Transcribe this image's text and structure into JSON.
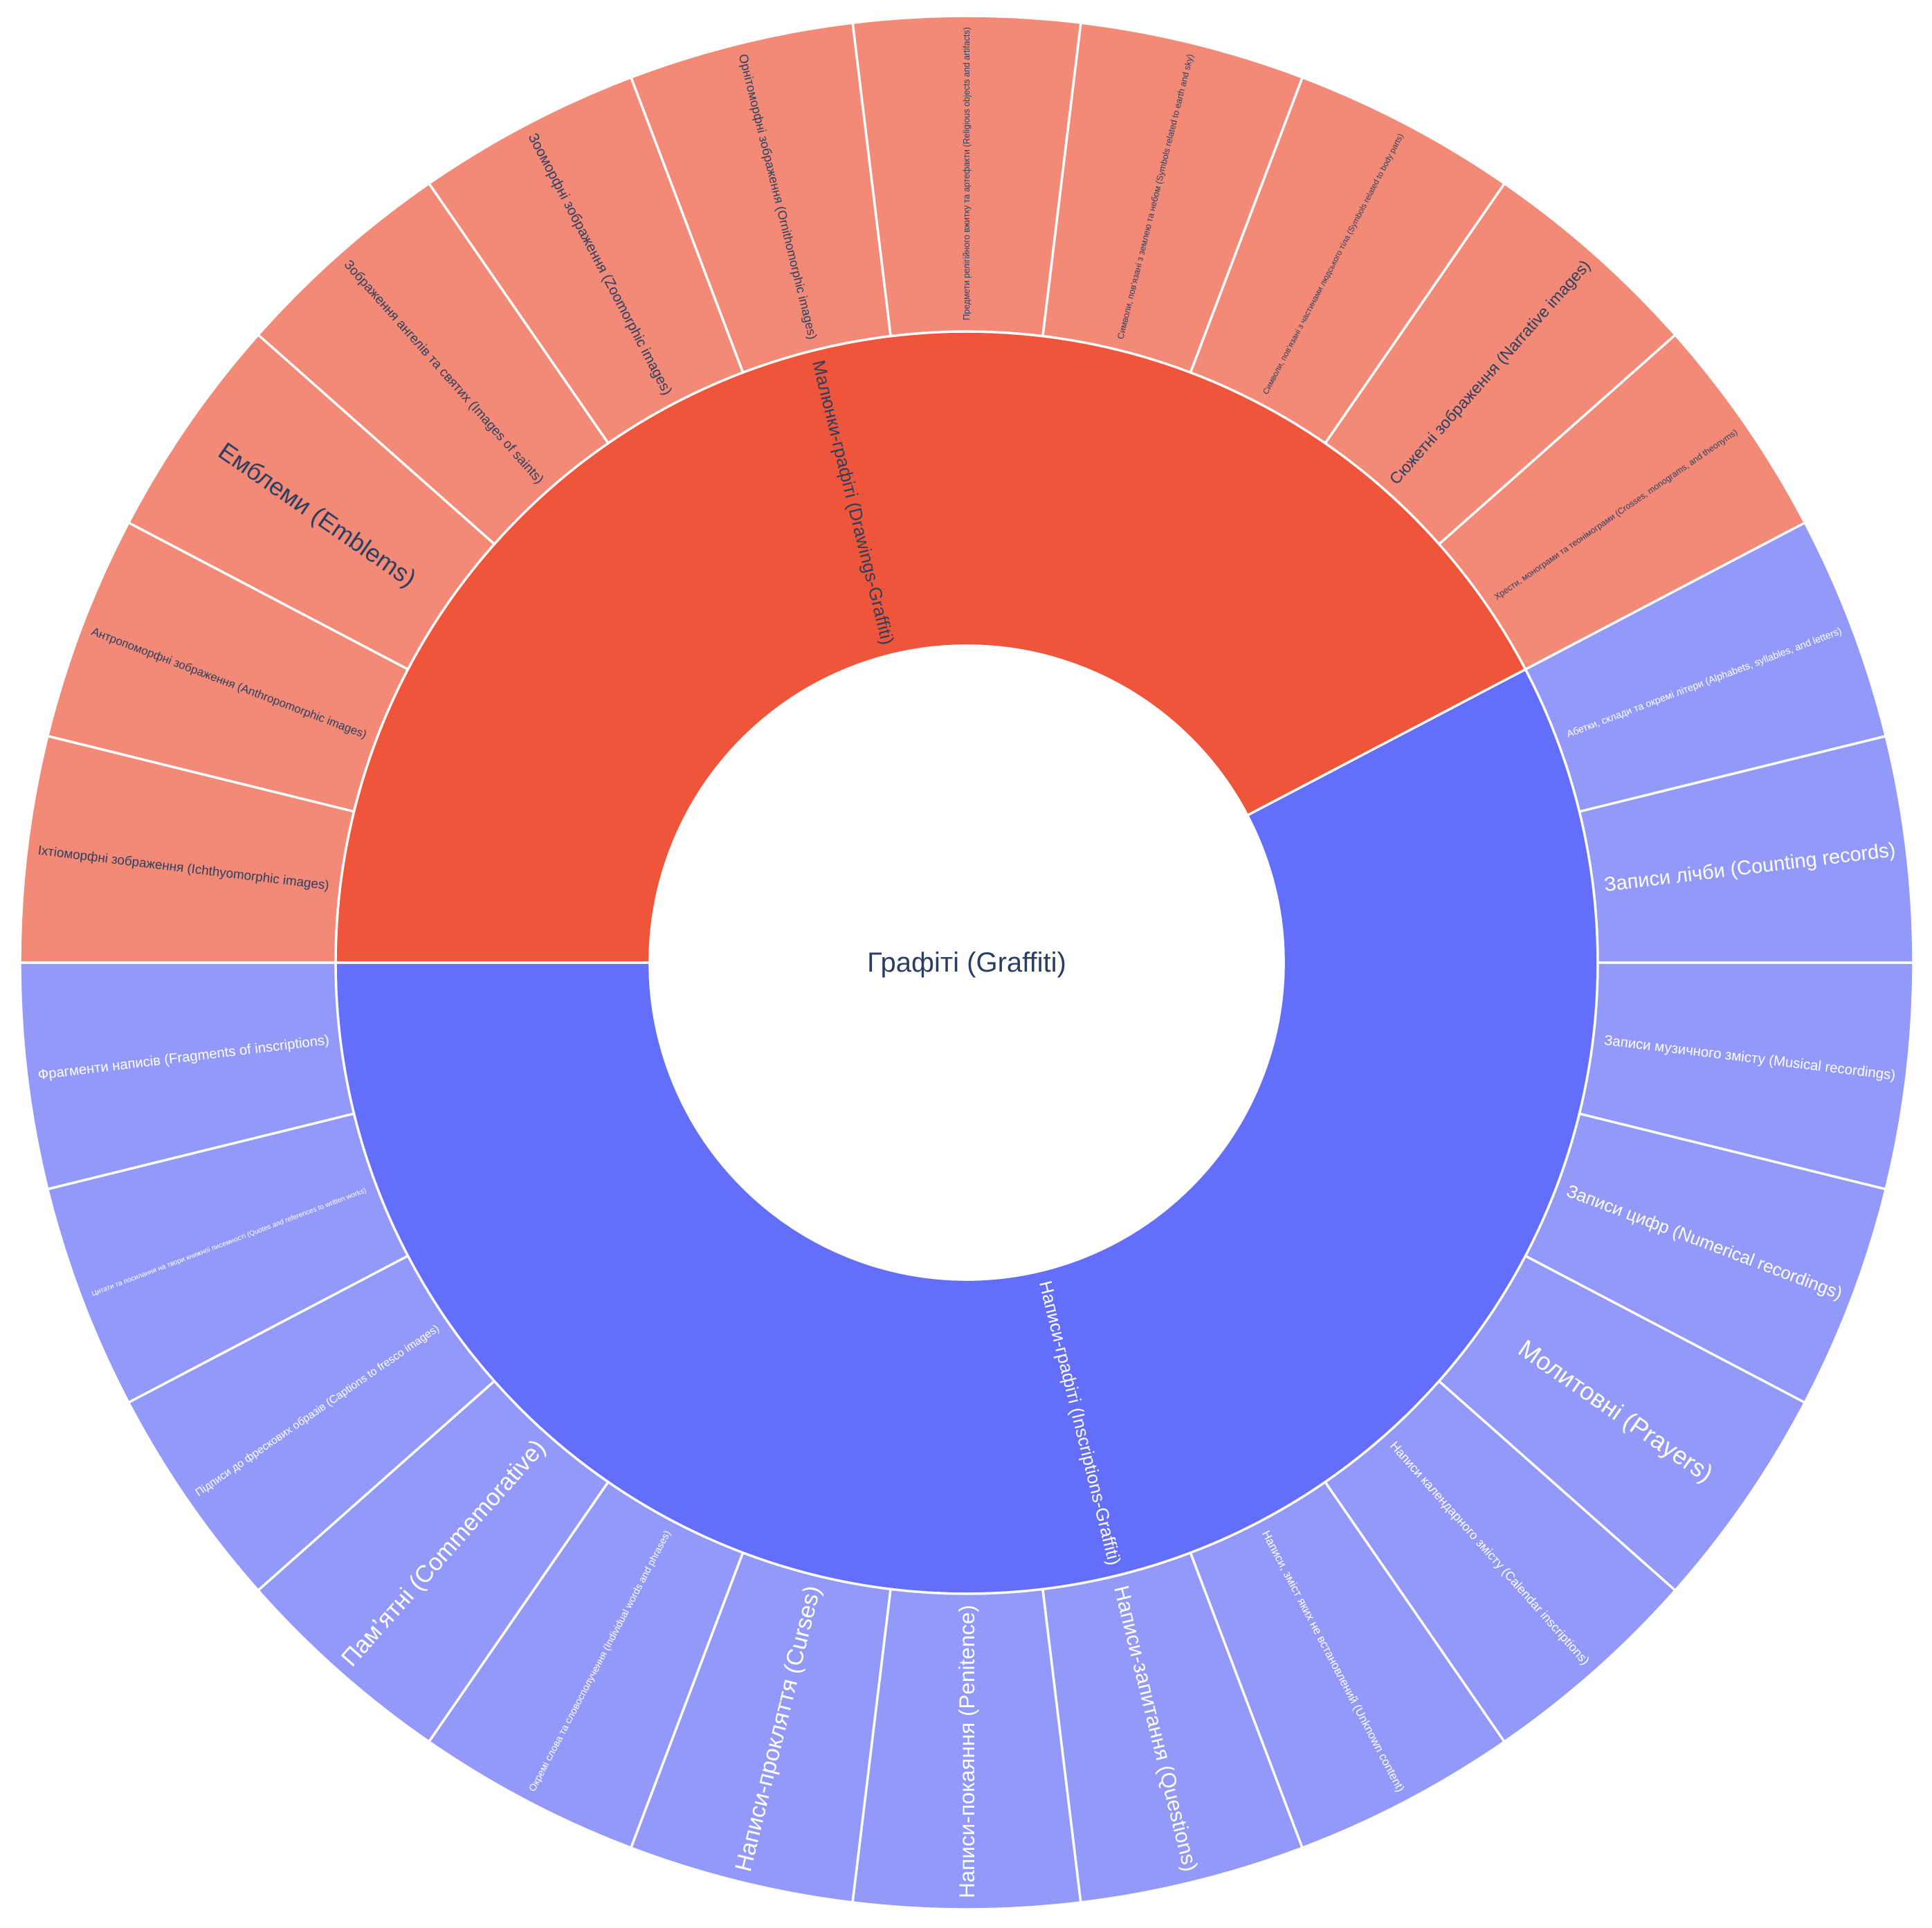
{
  "chart_data": {
    "type": "sunburst",
    "root": {
      "label": "Графіті (Graffiti)",
      "color": "#ffffff",
      "text_color": "#2a3f5f"
    },
    "start_side": "left",
    "direction": "counterclockwise",
    "groups": [
      {
        "label": "Написи-графіті (Inscriptions-Graffiti)",
        "color": "#636efa",
        "child_color": "#9299f8",
        "text_color": "#ffffff",
        "children": [
          {
            "label": "Фрагменти написів (Fragments of inscriptions)",
            "value": 1
          },
          {
            "label": "Цитати та посилання на твори книжної писемності (Quotes and references to written works)",
            "value": 1
          },
          {
            "label": "Підписи до фрескових образів (Captions to fresco images)",
            "value": 1
          },
          {
            "label": "Пам’ятні (Commemorative)",
            "value": 1
          },
          {
            "label": "Окремі слова та словосполучення (Individual words and phrases)",
            "value": 1
          },
          {
            "label": "Написи-прокляття (Curses)",
            "value": 1
          },
          {
            "label": "Написи-покаяння (Penitence)",
            "value": 1
          },
          {
            "label": "Написи-запитання (Questions)",
            "value": 1
          },
          {
            "label": "Написи, зміст яких не встановлений (Unknown content)",
            "value": 1
          },
          {
            "label": "Написи календарного змісту (Calendar inscriptions)",
            "value": 1
          },
          {
            "label": "Молитовні (Prayers)",
            "value": 1
          },
          {
            "label": "Записи цифр (Numerical recordings)",
            "value": 1
          },
          {
            "label": "Записи музичного змісту (Musical recordings)",
            "value": 1
          },
          {
            "label": "Записи лічби (Counting records)",
            "value": 1
          },
          {
            "label": "Абетки, склади та окремі літери (Alphabets, syllables, and letters)",
            "value": 1
          }
        ]
      },
      {
        "label": "Малюнки-графіті (Drawings-Graffiti)",
        "color": "#ef553b",
        "child_color": "#f38a77",
        "text_color": "#2a3f5f",
        "children": [
          {
            "label": "Хрести, монограми та теонімограми (Crosses, monograms, and theonyms)",
            "value": 1
          },
          {
            "label": "Сюжетні зображення (Narrative images)",
            "value": 1
          },
          {
            "label": "Символи, пов’язані з частинами людського тіла (Symbols related to body parts)",
            "value": 1
          },
          {
            "label": "Символи, пов’язані з землею та небом (Symbols related to earth and sky)",
            "value": 1
          },
          {
            "label": "Предмети релігійного вжитку та артефакти (Religious objects and artifacts)",
            "value": 1
          },
          {
            "label": "Орнітоморфні зображення (Ornithomorphic images)",
            "value": 1
          },
          {
            "label": "Зооморфні зображення (Zoomorphic images)",
            "value": 1
          },
          {
            "label": "Зображення ангелів та святих (Images of saints)",
            "value": 1
          },
          {
            "label": "Емблеми (Emblems)",
            "value": 1
          },
          {
            "label": "Антропоморфні зображення (Anthropomorphic images)",
            "value": 1
          },
          {
            "label": "Іхтіоморфні зображення (Ichthyomorphic images)",
            "value": 1
          }
        ]
      }
    ]
  }
}
